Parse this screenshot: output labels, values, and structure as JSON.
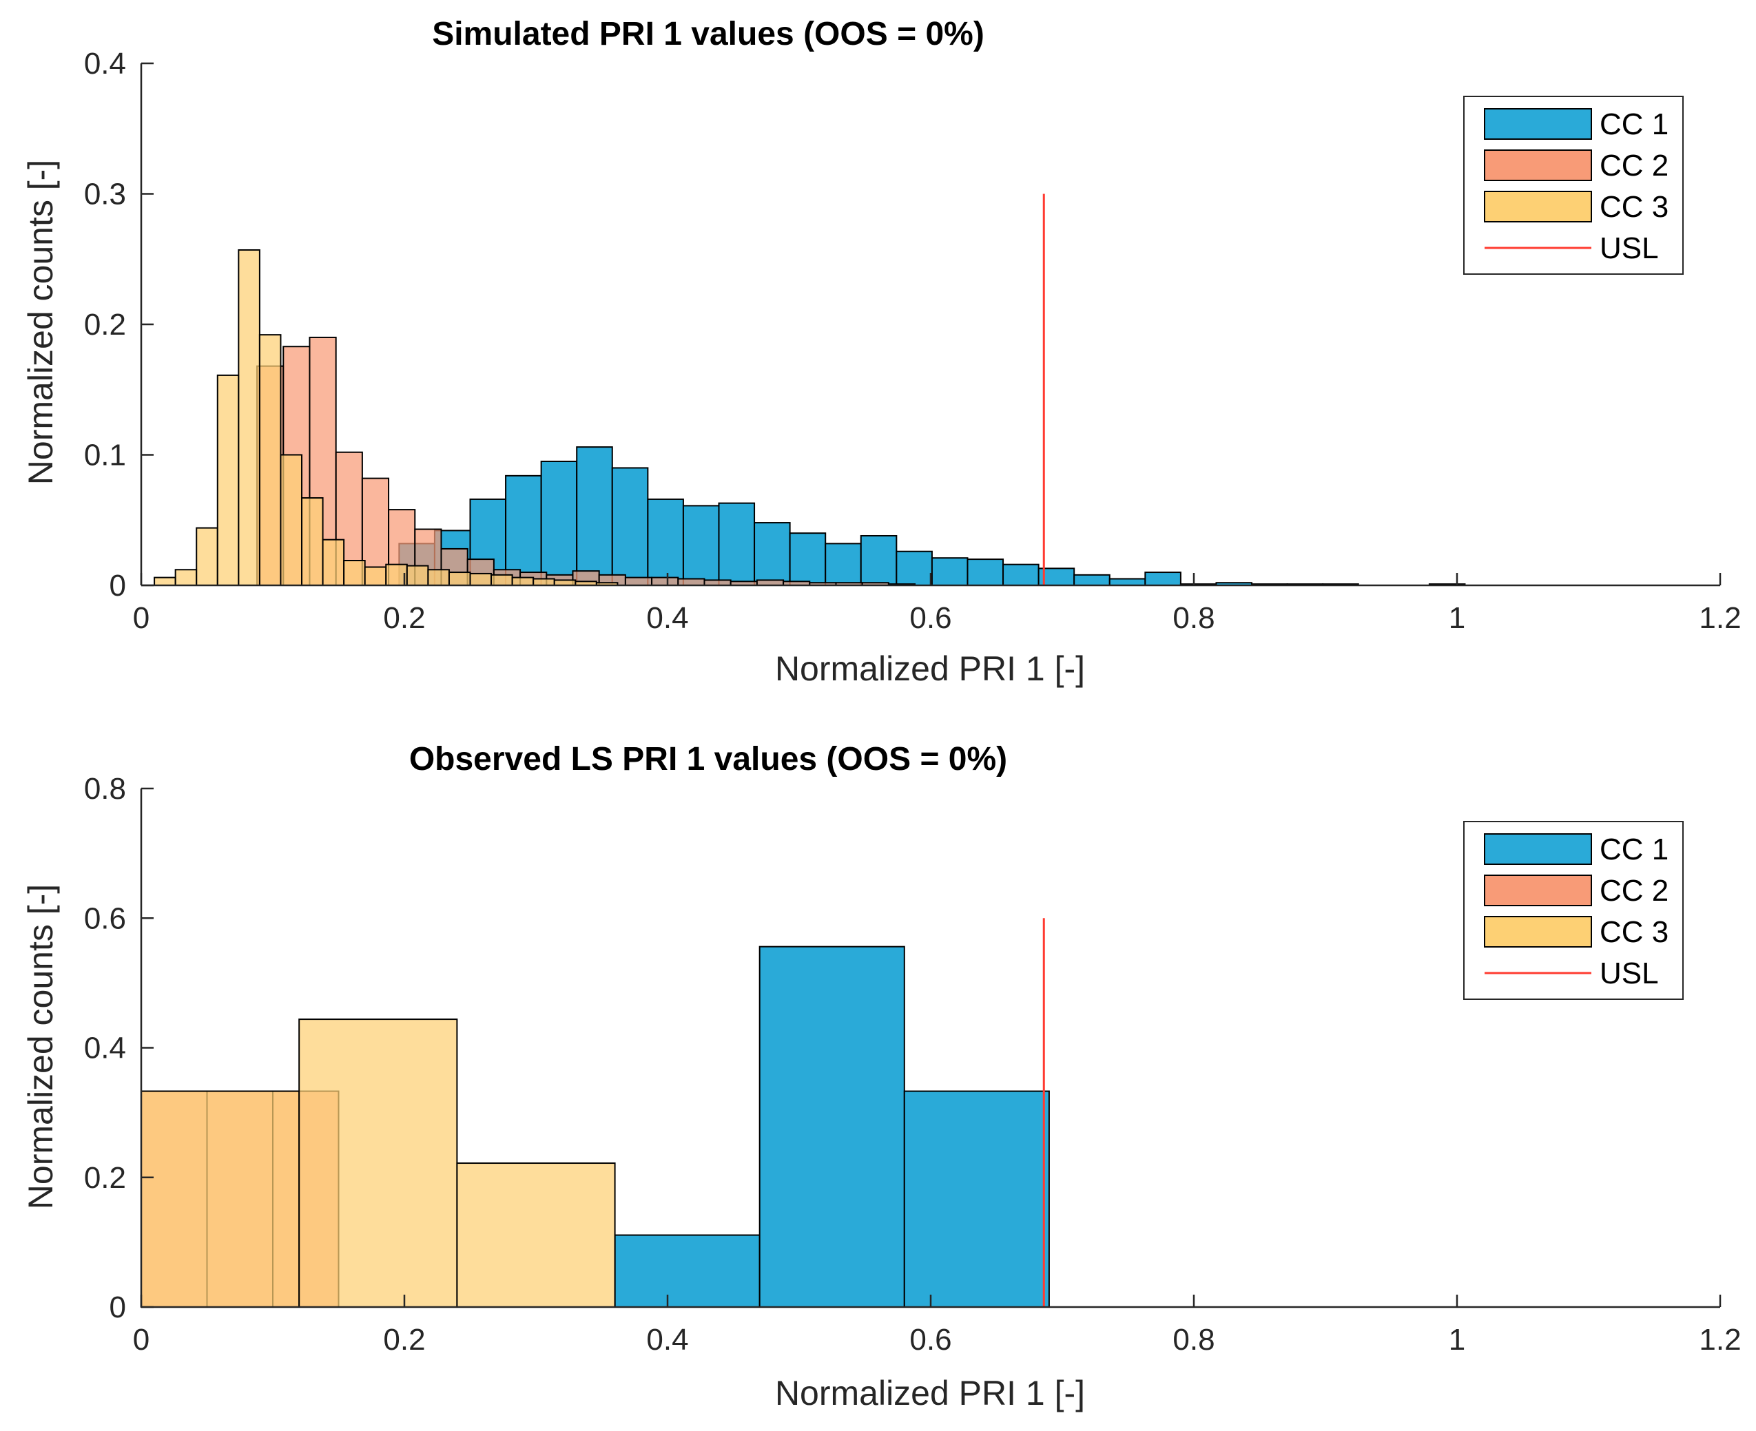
{
  "colors": {
    "cc1": "#2aaad8",
    "cc2": "#f89b77",
    "cc3": "#fdd074",
    "usl": "#ff3b30",
    "axis": "#262626"
  },
  "chart_data": [
    {
      "type": "bar",
      "title": "Simulated PRI 1 values (OOS = 0%)",
      "xlabel": "Normalized PRI 1 [-]",
      "ylabel": "Normalized counts [-]",
      "xlim": [
        0,
        1.2
      ],
      "ylim": [
        0,
        0.4
      ],
      "xticks": [
        "0",
        "0.2",
        "0.4",
        "0.6",
        "0.8",
        "1",
        "1.2"
      ],
      "xtick_values": [
        0,
        0.2,
        0.4,
        0.6,
        0.8,
        1.0,
        1.2
      ],
      "yticks": [
        "0",
        "0.1",
        "0.2",
        "0.3",
        "0.4"
      ],
      "ytick_values": [
        0,
        0.1,
        0.2,
        0.3,
        0.4
      ],
      "legend_position": "top-right",
      "legend": [
        {
          "label": "CC 1",
          "kind": "bar",
          "color_key": "cc1"
        },
        {
          "label": "CC 2",
          "kind": "bar",
          "color_key": "cc2"
        },
        {
          "label": "CC 3",
          "kind": "bar",
          "color_key": "cc3"
        },
        {
          "label": "USL",
          "kind": "line",
          "color_key": "usl"
        }
      ],
      "usl": {
        "x": 0.686,
        "y_top": 0.3
      },
      "series": [
        {
          "name": "CC 1",
          "color_key": "cc1",
          "bins": [
            [
              0.196,
              0.223,
              0.032
            ],
            [
              0.223,
              0.25,
              0.042
            ],
            [
              0.25,
              0.277,
              0.066
            ],
            [
              0.277,
              0.304,
              0.084
            ],
            [
              0.304,
              0.331,
              0.095
            ],
            [
              0.331,
              0.358,
              0.106
            ],
            [
              0.358,
              0.385,
              0.09
            ],
            [
              0.385,
              0.412,
              0.066
            ],
            [
              0.412,
              0.439,
              0.061
            ],
            [
              0.439,
              0.466,
              0.063
            ],
            [
              0.466,
              0.493,
              0.048
            ],
            [
              0.493,
              0.52,
              0.04
            ],
            [
              0.52,
              0.547,
              0.032
            ],
            [
              0.547,
              0.574,
              0.038
            ],
            [
              0.574,
              0.601,
              0.026
            ],
            [
              0.601,
              0.628,
              0.021
            ],
            [
              0.628,
              0.655,
              0.02
            ],
            [
              0.655,
              0.682,
              0.016
            ],
            [
              0.682,
              0.709,
              0.013
            ],
            [
              0.709,
              0.736,
              0.008
            ],
            [
              0.736,
              0.763,
              0.005
            ],
            [
              0.763,
              0.79,
              0.01
            ],
            [
              0.79,
              0.817,
              0.001
            ],
            [
              0.817,
              0.844,
              0.002
            ],
            [
              0.844,
              0.871,
              0.001
            ],
            [
              0.871,
              0.898,
              0.001
            ],
            [
              0.898,
              0.925,
              0.001
            ],
            [
              0.979,
              1.006,
              0.001
            ]
          ]
        },
        {
          "name": "CC 2",
          "color_key": "cc2",
          "bins": [
            [
              0.088,
              0.108,
              0.168
            ],
            [
              0.108,
              0.128,
              0.183
            ],
            [
              0.128,
              0.148,
              0.19
            ],
            [
              0.148,
              0.168,
              0.102
            ],
            [
              0.168,
              0.188,
              0.082
            ],
            [
              0.188,
              0.208,
              0.058
            ],
            [
              0.208,
              0.228,
              0.043
            ],
            [
              0.228,
              0.248,
              0.028
            ],
            [
              0.248,
              0.268,
              0.02
            ],
            [
              0.268,
              0.288,
              0.012
            ],
            [
              0.288,
              0.308,
              0.01
            ],
            [
              0.308,
              0.328,
              0.008
            ],
            [
              0.328,
              0.348,
              0.011
            ],
            [
              0.348,
              0.368,
              0.008
            ],
            [
              0.368,
              0.388,
              0.006
            ],
            [
              0.388,
              0.408,
              0.006
            ],
            [
              0.408,
              0.428,
              0.005
            ],
            [
              0.428,
              0.448,
              0.004
            ],
            [
              0.448,
              0.468,
              0.003
            ],
            [
              0.468,
              0.488,
              0.004
            ],
            [
              0.488,
              0.508,
              0.003
            ],
            [
              0.508,
              0.528,
              0.002
            ],
            [
              0.528,
              0.548,
              0.002
            ],
            [
              0.548,
              0.568,
              0.002
            ],
            [
              0.568,
              0.588,
              0.001
            ]
          ]
        },
        {
          "name": "CC 3",
          "color_key": "cc3",
          "bins": [
            [
              0.01,
              0.026,
              0.006
            ],
            [
              0.026,
              0.042,
              0.012
            ],
            [
              0.042,
              0.058,
              0.044
            ],
            [
              0.058,
              0.074,
              0.161
            ],
            [
              0.074,
              0.09,
              0.257
            ],
            [
              0.09,
              0.106,
              0.192
            ],
            [
              0.106,
              0.122,
              0.1
            ],
            [
              0.122,
              0.138,
              0.067
            ],
            [
              0.138,
              0.154,
              0.035
            ],
            [
              0.154,
              0.17,
              0.019
            ],
            [
              0.17,
              0.186,
              0.014
            ],
            [
              0.186,
              0.202,
              0.016
            ],
            [
              0.202,
              0.218,
              0.015
            ],
            [
              0.218,
              0.234,
              0.012
            ],
            [
              0.234,
              0.25,
              0.01
            ],
            [
              0.25,
              0.266,
              0.009
            ],
            [
              0.266,
              0.282,
              0.008
            ],
            [
              0.282,
              0.298,
              0.006
            ],
            [
              0.298,
              0.314,
              0.005
            ],
            [
              0.314,
              0.33,
              0.004
            ],
            [
              0.33,
              0.346,
              0.003
            ],
            [
              0.346,
              0.362,
              0.002
            ]
          ]
        }
      ]
    },
    {
      "type": "bar",
      "title": "Observed LS PRI 1 values (OOS = 0%)",
      "xlabel": "Normalized PRI 1 [-]",
      "ylabel": "Normalized counts [-]",
      "xlim": [
        0,
        1.2
      ],
      "ylim": [
        0,
        0.8
      ],
      "xticks": [
        "0",
        "0.2",
        "0.4",
        "0.6",
        "0.8",
        "1",
        "1.2"
      ],
      "xtick_values": [
        0,
        0.2,
        0.4,
        0.6,
        0.8,
        1.0,
        1.2
      ],
      "yticks": [
        "0",
        "0.2",
        "0.4",
        "0.6",
        "0.8"
      ],
      "ytick_values": [
        0,
        0.2,
        0.4,
        0.6,
        0.8
      ],
      "legend_position": "top-right",
      "legend": [
        {
          "label": "CC 1",
          "kind": "bar",
          "color_key": "cc1"
        },
        {
          "label": "CC 2",
          "kind": "bar",
          "color_key": "cc2"
        },
        {
          "label": "CC 3",
          "kind": "bar",
          "color_key": "cc3"
        },
        {
          "label": "USL",
          "kind": "line",
          "color_key": "usl"
        }
      ],
      "usl": {
        "x": 0.686,
        "y_top": 0.6
      },
      "series": [
        {
          "name": "CC 1",
          "color_key": "cc1",
          "bins": [
            [
              0.36,
              0.47,
              0.111
            ],
            [
              0.47,
              0.58,
              0.556
            ],
            [
              0.58,
              0.69,
              0.333
            ]
          ]
        },
        {
          "name": "CC 2",
          "color_key": "cc2",
          "bins": [
            [
              0.0,
              0.05,
              0.333
            ],
            [
              0.05,
              0.1,
              0.333
            ],
            [
              0.1,
              0.15,
              0.333
            ]
          ]
        },
        {
          "name": "CC 3",
          "color_key": "cc3",
          "bins": [
            [
              0.0,
              0.12,
              0.333
            ],
            [
              0.12,
              0.24,
              0.444
            ],
            [
              0.24,
              0.36,
              0.222
            ]
          ]
        }
      ]
    }
  ]
}
